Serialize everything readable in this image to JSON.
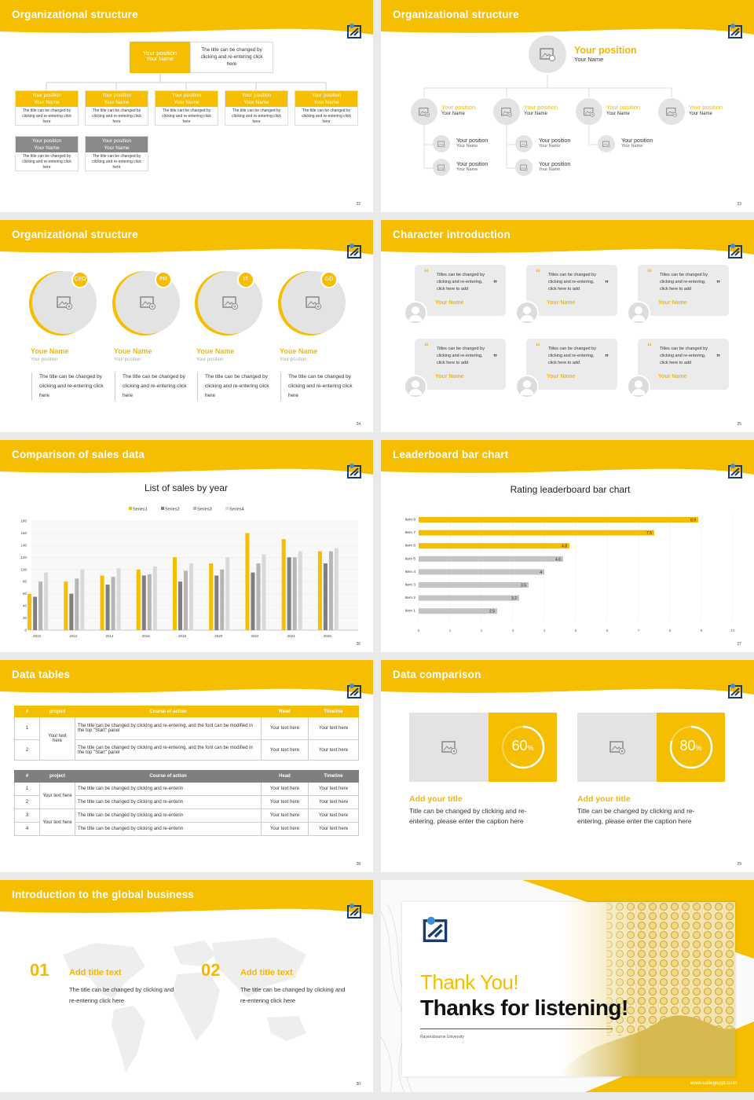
{
  "colors": {
    "accent": "#f5be00",
    "gray": "#8a8a8a",
    "light": "#c8c8c8",
    "card": "#ebebeb"
  },
  "slides": {
    "s22": {
      "title": "Organizational structure",
      "page": "22",
      "top": {
        "pos": "Your position",
        "name": "Your Name",
        "desc": "The title can be changed by clicking and re-entering click here"
      },
      "boxes": [
        {
          "pos": "Your position",
          "name": "Your Name",
          "desc": "The title can be changed by clicking and re-entering click here"
        },
        {
          "pos": "Your position",
          "name": "Your Name",
          "desc": "The title can be changed by clicking and re-entering click here"
        },
        {
          "pos": "Your position",
          "name": "Your Name",
          "desc": "The title can be changed by clicking and re-entering click here"
        },
        {
          "pos": "Your position",
          "name": "Your Name",
          "desc": "The title can be changed by clicking and re-entering click here"
        },
        {
          "pos": "Your position",
          "name": "Your Name",
          "desc": "The title can be changed by clicking and re-entering click here"
        }
      ],
      "gray": [
        {
          "pos": "Your position",
          "name": "Your Name",
          "desc": "The title can be changed by clicking and re-entering click here"
        },
        {
          "pos": "Your position",
          "name": "Your Name",
          "desc": "The title can be changed by clicking and re-entering click here"
        }
      ]
    },
    "s23": {
      "title": "Organizational structure",
      "page": "23",
      "top": {
        "pos": "Your position",
        "name": "Your Name"
      },
      "level2": [
        {
          "pos": "Your position",
          "name": "Your Name"
        },
        {
          "pos": "Your position",
          "name": "Your Name"
        },
        {
          "pos": "Your position",
          "name": "Your Name"
        },
        {
          "pos": "Your position",
          "name": "Your Name"
        }
      ],
      "level3": [
        {
          "pos": "Your position",
          "name": "Your Name"
        },
        {
          "pos": "Your position",
          "name": "Your Name"
        },
        {
          "pos": "Your position",
          "name": "Your Name"
        },
        {
          "pos": "Your position",
          "name": "Your Name"
        },
        {
          "pos": "Your position",
          "name": "Your Name"
        }
      ]
    },
    "s24": {
      "title": "Organizational structure",
      "page": "24",
      "people": [
        {
          "badge": "CEO",
          "name": "Youe Name",
          "pos": "Your position",
          "desc": "The title can be changed by clicking and re-entering click here"
        },
        {
          "badge": "PR",
          "name": "Youe Name",
          "pos": "Your position",
          "desc": "The title can be changed by clicking and re-entering click here"
        },
        {
          "badge": "IT",
          "name": "Youe Name",
          "pos": "Your position",
          "desc": "The title can be changed by clicking and re-entering click here"
        },
        {
          "badge": "GD",
          "name": "Youe Name",
          "pos": "Your position",
          "desc": "The title can be changed by clicking and re-entering click here"
        }
      ]
    },
    "s25": {
      "title": "Character introduction",
      "page": "25",
      "quote": "Titles can be changed by clicking and re-entering, click here to add",
      "name": "Your Name"
    },
    "s26": {
      "title": "Comparison of sales data",
      "page": "26"
    },
    "s27": {
      "title": "Leaderboard bar chart",
      "page": "27"
    },
    "s28": {
      "title": "Data tables",
      "page": "28",
      "t1": {
        "headers": [
          "#",
          "project",
          "Course of action",
          "Head",
          "Timeline"
        ],
        "rows": [
          {
            "n": "1",
            "action": "The title can be changed by clicking and re-entering, and the font can be modified in the top \"Start\" panel",
            "head": "Your text here",
            "time": "Your text here"
          },
          {
            "n": "2",
            "action": "The title can be changed by clicking and re-entering, and the font can be modified in the top \"Start\" panel",
            "head": "Your text here",
            "time": "Your text here"
          }
        ],
        "project": "Your text here"
      },
      "t2": {
        "headers": [
          "#",
          "project",
          "Course of action",
          "Head",
          "Timeline"
        ],
        "rows": [
          {
            "n": "1",
            "action": "The title can be changed by clicking and re-enterin",
            "head": "Your text here",
            "time": "Your text here"
          },
          {
            "n": "2",
            "action": "The title can be changed by clicking and re-enterin",
            "head": "Your text here",
            "time": "Your text here"
          },
          {
            "n": "3",
            "action": "The title can be changed by clicking and re-enterin",
            "head": "Your text here",
            "time": "Your text here"
          },
          {
            "n": "4",
            "action": "The title can be changed by clicking and re-enterin",
            "head": "Your text here",
            "time": "Your text here"
          }
        ],
        "project1": "Your text here",
        "project2": "Your text here"
      }
    },
    "s29": {
      "title": "Data comparison",
      "page": "29",
      "items": [
        {
          "pct": "60",
          "unit": "%",
          "value": 60,
          "heading": "Add your title",
          "desc": "Title can be changed by clicking and re-entering, please enter the caption here"
        },
        {
          "pct": "80",
          "unit": "%",
          "value": 80,
          "heading": "Add your title",
          "desc": "Title can be changed by clicking and re-entering, please enter the caption here"
        }
      ]
    },
    "s30": {
      "title": "Introduction to the global business",
      "page": "30",
      "items": [
        {
          "num": "01",
          "heading": "Add title text",
          "desc": "The title can be changed by clicking and re-entering click here"
        },
        {
          "num": "02",
          "heading": "Add title text",
          "desc": "The title can be changed by clicking and re-entering click here"
        }
      ]
    },
    "s31": {
      "thanks": "Thank You!",
      "listening": "Thanks for listening!",
      "university": "Ravensbourne University",
      "url": "www.collegeppt.com"
    }
  },
  "chart_data": [
    {
      "type": "bar",
      "title": "List of sales by year",
      "categories": [
        "2010",
        "2012",
        "2014",
        "2016",
        "2018",
        "2020",
        "2022",
        "2024",
        "2026"
      ],
      "ylim": [
        0,
        180
      ],
      "yticks": [
        0,
        20,
        40,
        60,
        80,
        100,
        120,
        140,
        160,
        180
      ],
      "legend": "top",
      "series": [
        {
          "name": "Series1",
          "color": "#f5be00",
          "values": [
            60,
            80,
            90,
            100,
            120,
            110,
            160,
            150,
            130
          ]
        },
        {
          "name": "Series2",
          "color": "#7f7f7f",
          "values": [
            55,
            60,
            75,
            90,
            80,
            90,
            95,
            120,
            110
          ]
        },
        {
          "name": "Series3",
          "color": "#b5b5b5",
          "values": [
            80,
            85,
            88,
            92,
            98,
            100,
            110,
            120,
            130
          ]
        },
        {
          "name": "Series4",
          "color": "#d9d9d9",
          "values": [
            95,
            100,
            102,
            105,
            110,
            120,
            125,
            130,
            135
          ]
        }
      ]
    },
    {
      "type": "bar",
      "orientation": "horizontal",
      "title": "Rating leaderboard bar chart",
      "categories": [
        "Item 8",
        "Item 7",
        "Item 6",
        "Item 5",
        "Item 4",
        "Item 3",
        "Item 2",
        "Item 1"
      ],
      "values": [
        8.9,
        7.5,
        4.8,
        4.6,
        4,
        3.5,
        3.2,
        2.5
      ],
      "xlim": [
        0,
        10
      ],
      "xticks": [
        0,
        1,
        2,
        3,
        4,
        5,
        6,
        7,
        8,
        9,
        10
      ],
      "highlight": [
        "Item 8",
        "Item 7",
        "Item 6"
      ]
    }
  ]
}
